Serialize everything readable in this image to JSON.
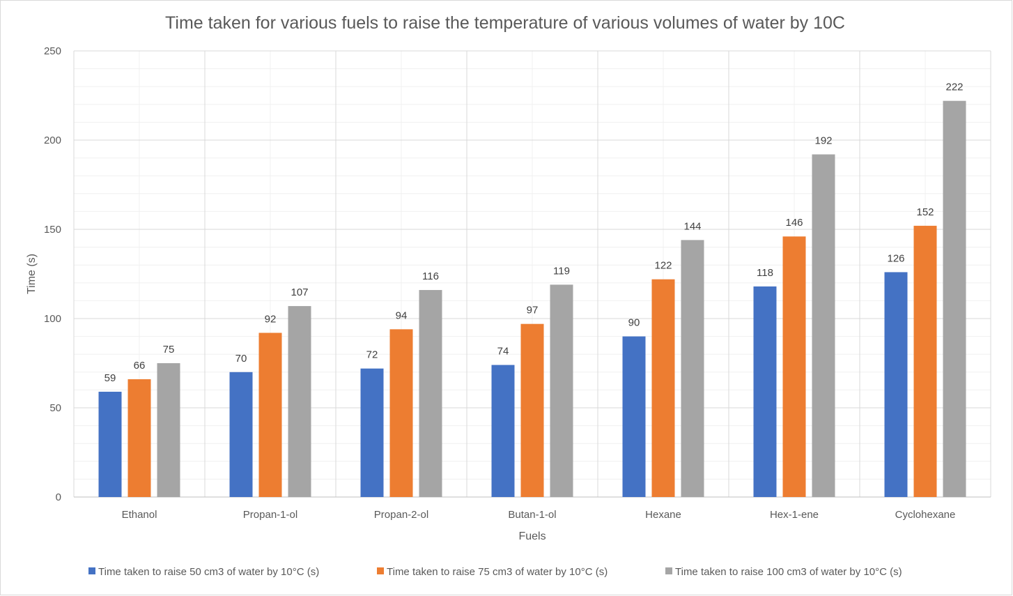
{
  "chart_data": {
    "type": "bar",
    "title": "Time taken for various fuels to raise the temperature of various volumes of water by 10C",
    "xlabel": "Fuels",
    "ylabel": "Time (s)",
    "ylim": [
      0,
      250
    ],
    "yticks": [
      0,
      50,
      100,
      150,
      200,
      250
    ],
    "grid": true,
    "legend_position": "bottom",
    "categories": [
      "Ethanol",
      "Propan-1-ol",
      "Propan-2-ol",
      "Butan-1-ol",
      "Hexane",
      "Hex-1-ene",
      "Cyclohexane"
    ],
    "series": [
      {
        "name": "Time taken to raise 50 cm3 of water by 10°C (s)",
        "color": "#4472C4",
        "values": [
          59,
          70,
          72,
          74,
          90,
          118,
          126
        ]
      },
      {
        "name": "Time taken to raise 75 cm3 of water by 10°C (s)",
        "color": "#ED7D31",
        "values": [
          66,
          92,
          94,
          97,
          122,
          146,
          152
        ]
      },
      {
        "name": "Time taken to raise 100 cm3 of water by 10°C (s)",
        "color": "#A5A5A5",
        "values": [
          75,
          107,
          116,
          119,
          144,
          192,
          222
        ]
      }
    ]
  }
}
